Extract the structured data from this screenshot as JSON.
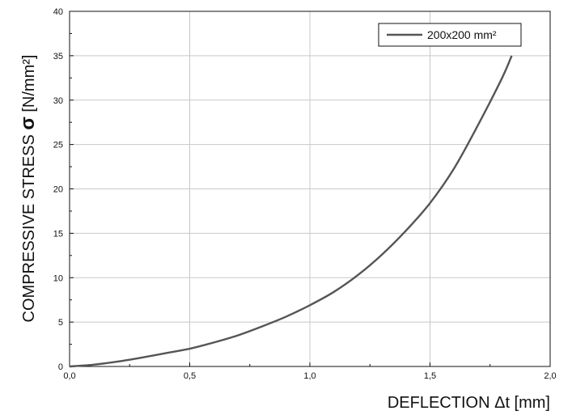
{
  "chart_data": {
    "type": "line",
    "xlabel": "DEFLECTION Δt [mm]",
    "ylabel_prefix": "COMPRESSIVE STRESS ",
    "ylabel_sigma": "σ",
    "ylabel_suffix": " [N/mm²]",
    "xlim": [
      0,
      2.0
    ],
    "ylim": [
      0,
      40
    ],
    "x_ticks": [
      "0,0",
      "0,5",
      "1,0",
      "1,5",
      "2,0"
    ],
    "y_ticks": [
      "0",
      "5",
      "10",
      "15",
      "20",
      "25",
      "30",
      "35",
      "40"
    ],
    "grid": true,
    "legend_position": "top-right",
    "series": [
      {
        "name": "200x200 mm²",
        "color": "#555555",
        "x": [
          0,
          0.1,
          0.2,
          0.3,
          0.4,
          0.5,
          0.6,
          0.7,
          0.8,
          0.9,
          1.0,
          1.1,
          1.2,
          1.3,
          1.4,
          1.5,
          1.6,
          1.7,
          1.8,
          1.84
        ],
        "y": [
          0,
          0.2,
          0.55,
          1.0,
          1.5,
          2.0,
          2.7,
          3.5,
          4.5,
          5.6,
          6.9,
          8.4,
          10.3,
          12.6,
          15.3,
          18.4,
          22.3,
          27.2,
          32.5,
          35.0
        ]
      }
    ]
  }
}
